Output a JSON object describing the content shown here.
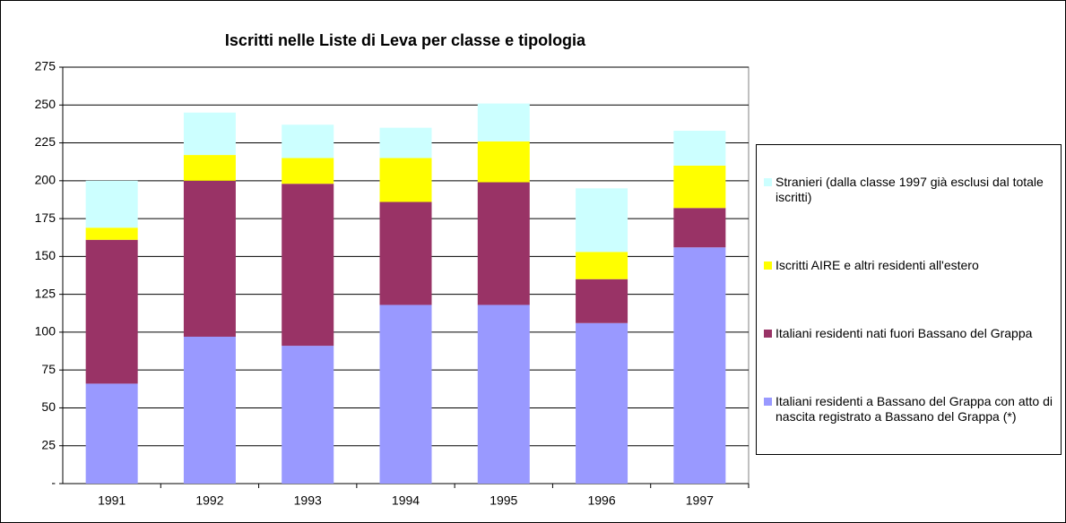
{
  "chart_data": {
    "type": "stacked_bar",
    "title": "Iscritti nelle Liste di Leva per classe e tipologia",
    "categories": [
      "1991",
      "1992",
      "1993",
      "1994",
      "1995",
      "1996",
      "1997"
    ],
    "series": [
      {
        "name": "Italiani residenti a Bassano del Grappa con atto di nascita registrato a Bassano del Grappa (*)",
        "color": "#9999ff",
        "values": [
          66,
          97,
          91,
          118,
          118,
          106,
          156
        ]
      },
      {
        "name": "Italiani residenti nati fuori Bassano del Grappa",
        "color": "#993366",
        "values": [
          95,
          103,
          107,
          68,
          81,
          29,
          26
        ]
      },
      {
        "name": "Iscritti AIRE e altri residenti all'estero",
        "color": "#ffff00",
        "values": [
          8,
          17,
          17,
          29,
          27,
          18,
          28
        ]
      },
      {
        "name": "Stranieri (dalla classe 1997 già esclusi dal totale iscritti)",
        "color": "#ccffff",
        "values": [
          31,
          28,
          22,
          20,
          25,
          42,
          23
        ]
      }
    ],
    "ylim": [
      0,
      275
    ],
    "yticks": [
      {
        "value": 0,
        "label": "-"
      },
      25,
      50,
      75,
      100,
      125,
      150,
      175,
      200,
      225,
      250,
      275
    ],
    "grid": true,
    "legend": "right"
  }
}
